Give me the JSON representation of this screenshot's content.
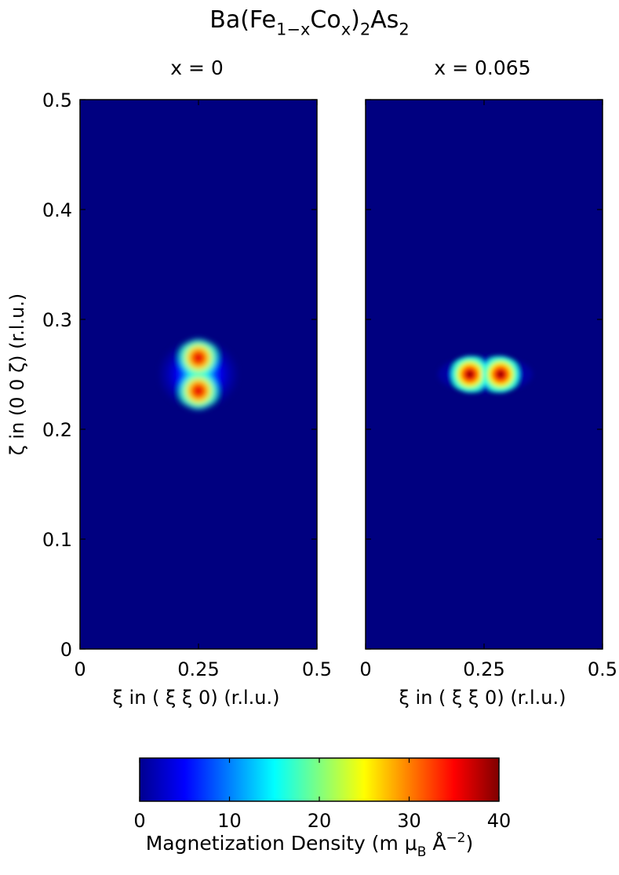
{
  "figure": {
    "title_main": "Ba(Fe",
    "title_sub1": "1−x",
    "title_mid": "Co",
    "title_sub2": "x",
    "title_mid2": ")",
    "title_sub3": "2",
    "title_end": "As",
    "title_sub4": "2",
    "colorbar_label_main": "Magnetization Density (m μ",
    "colorbar_label_sub": "B",
    "colorbar_label_unit": " Å",
    "colorbar_label_sup": "−2",
    "colorbar_label_close": ")"
  },
  "chart_data": [
    {
      "type": "heatmap",
      "title": "x = 0",
      "xlabel": "ξ in ( ξ ξ 0) (r.l.u.)",
      "ylabel": "ζ in (0 0   ζ) (r.l.u.)",
      "xlim": [
        0,
        0.5
      ],
      "ylim": [
        0,
        0.5
      ],
      "xticks": [
        0,
        0.25,
        0.5
      ],
      "xtick_labels": [
        "0",
        "0.25",
        "0.5"
      ],
      "yticks": [
        0,
        0.1,
        0.2,
        0.3,
        0.4,
        0.5
      ],
      "ytick_labels": [
        "0",
        "0.1",
        "0.2",
        "0.3",
        "0.4",
        "0.5"
      ],
      "background_value": 0,
      "peaks": [
        {
          "x": 0.25,
          "y": 0.265,
          "value": 36
        },
        {
          "x": 0.25,
          "y": 0.235,
          "value": 36
        }
      ],
      "halo": "lobes elongated along ζ, about 0.10 wide in ξ and 0.20 tall in ζ"
    },
    {
      "type": "heatmap",
      "title": "x = 0.065",
      "xlabel": "ξ in ( ξ ξ 0) (r.l.u.)",
      "ylabel": "",
      "xlim": [
        0,
        0.5
      ],
      "ylim": [
        0,
        0.5
      ],
      "xticks": [
        0,
        0.25,
        0.5
      ],
      "xtick_labels": [
        "0",
        "0.25",
        "0.5"
      ],
      "yticks": [
        0,
        0.1,
        0.2,
        0.3,
        0.4,
        0.5
      ],
      "ytick_labels": [],
      "background_value": 0,
      "peaks": [
        {
          "x": 0.22,
          "y": 0.25,
          "value": 40
        },
        {
          "x": 0.285,
          "y": 0.25,
          "value": 40
        }
      ],
      "halo": "lobes elongated along ξ, about 0.15 wide in ξ and 0.08 tall in ζ"
    }
  ],
  "colorbar": {
    "colormap": "jet",
    "range": [
      0,
      40
    ],
    "ticks": [
      0,
      10,
      20,
      30,
      40
    ],
    "tick_labels": [
      "0",
      "10",
      "20",
      "30",
      "40"
    ]
  }
}
